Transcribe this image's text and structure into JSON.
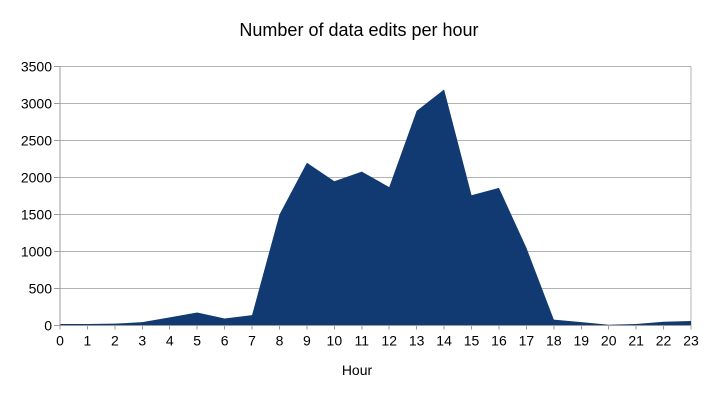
{
  "window": {
    "background": "#ffffff"
  },
  "chart_data": {
    "type": "area",
    "title": "Number of data edits per hour",
    "xlabel": "Hour",
    "ylabel": "",
    "categories": [
      "0",
      "1",
      "2",
      "3",
      "4",
      "5",
      "6",
      "7",
      "8",
      "9",
      "10",
      "11",
      "12",
      "13",
      "14",
      "15",
      "16",
      "17",
      "18",
      "19",
      "20",
      "21",
      "22",
      "23"
    ],
    "values": [
      20,
      20,
      25,
      45,
      110,
      175,
      95,
      140,
      1500,
      2200,
      1950,
      2080,
      1870,
      2900,
      3190,
      1760,
      1860,
      1050,
      80,
      45,
      10,
      20,
      50,
      60
    ],
    "ylim": [
      0,
      3500
    ],
    "ytick_step": 500,
    "grid": true,
    "legend": "none",
    "colors": {
      "series_fill": "#113a72",
      "gridline": "#b3b3b3",
      "axis": "#9b9b9b",
      "text": "#000000"
    }
  }
}
